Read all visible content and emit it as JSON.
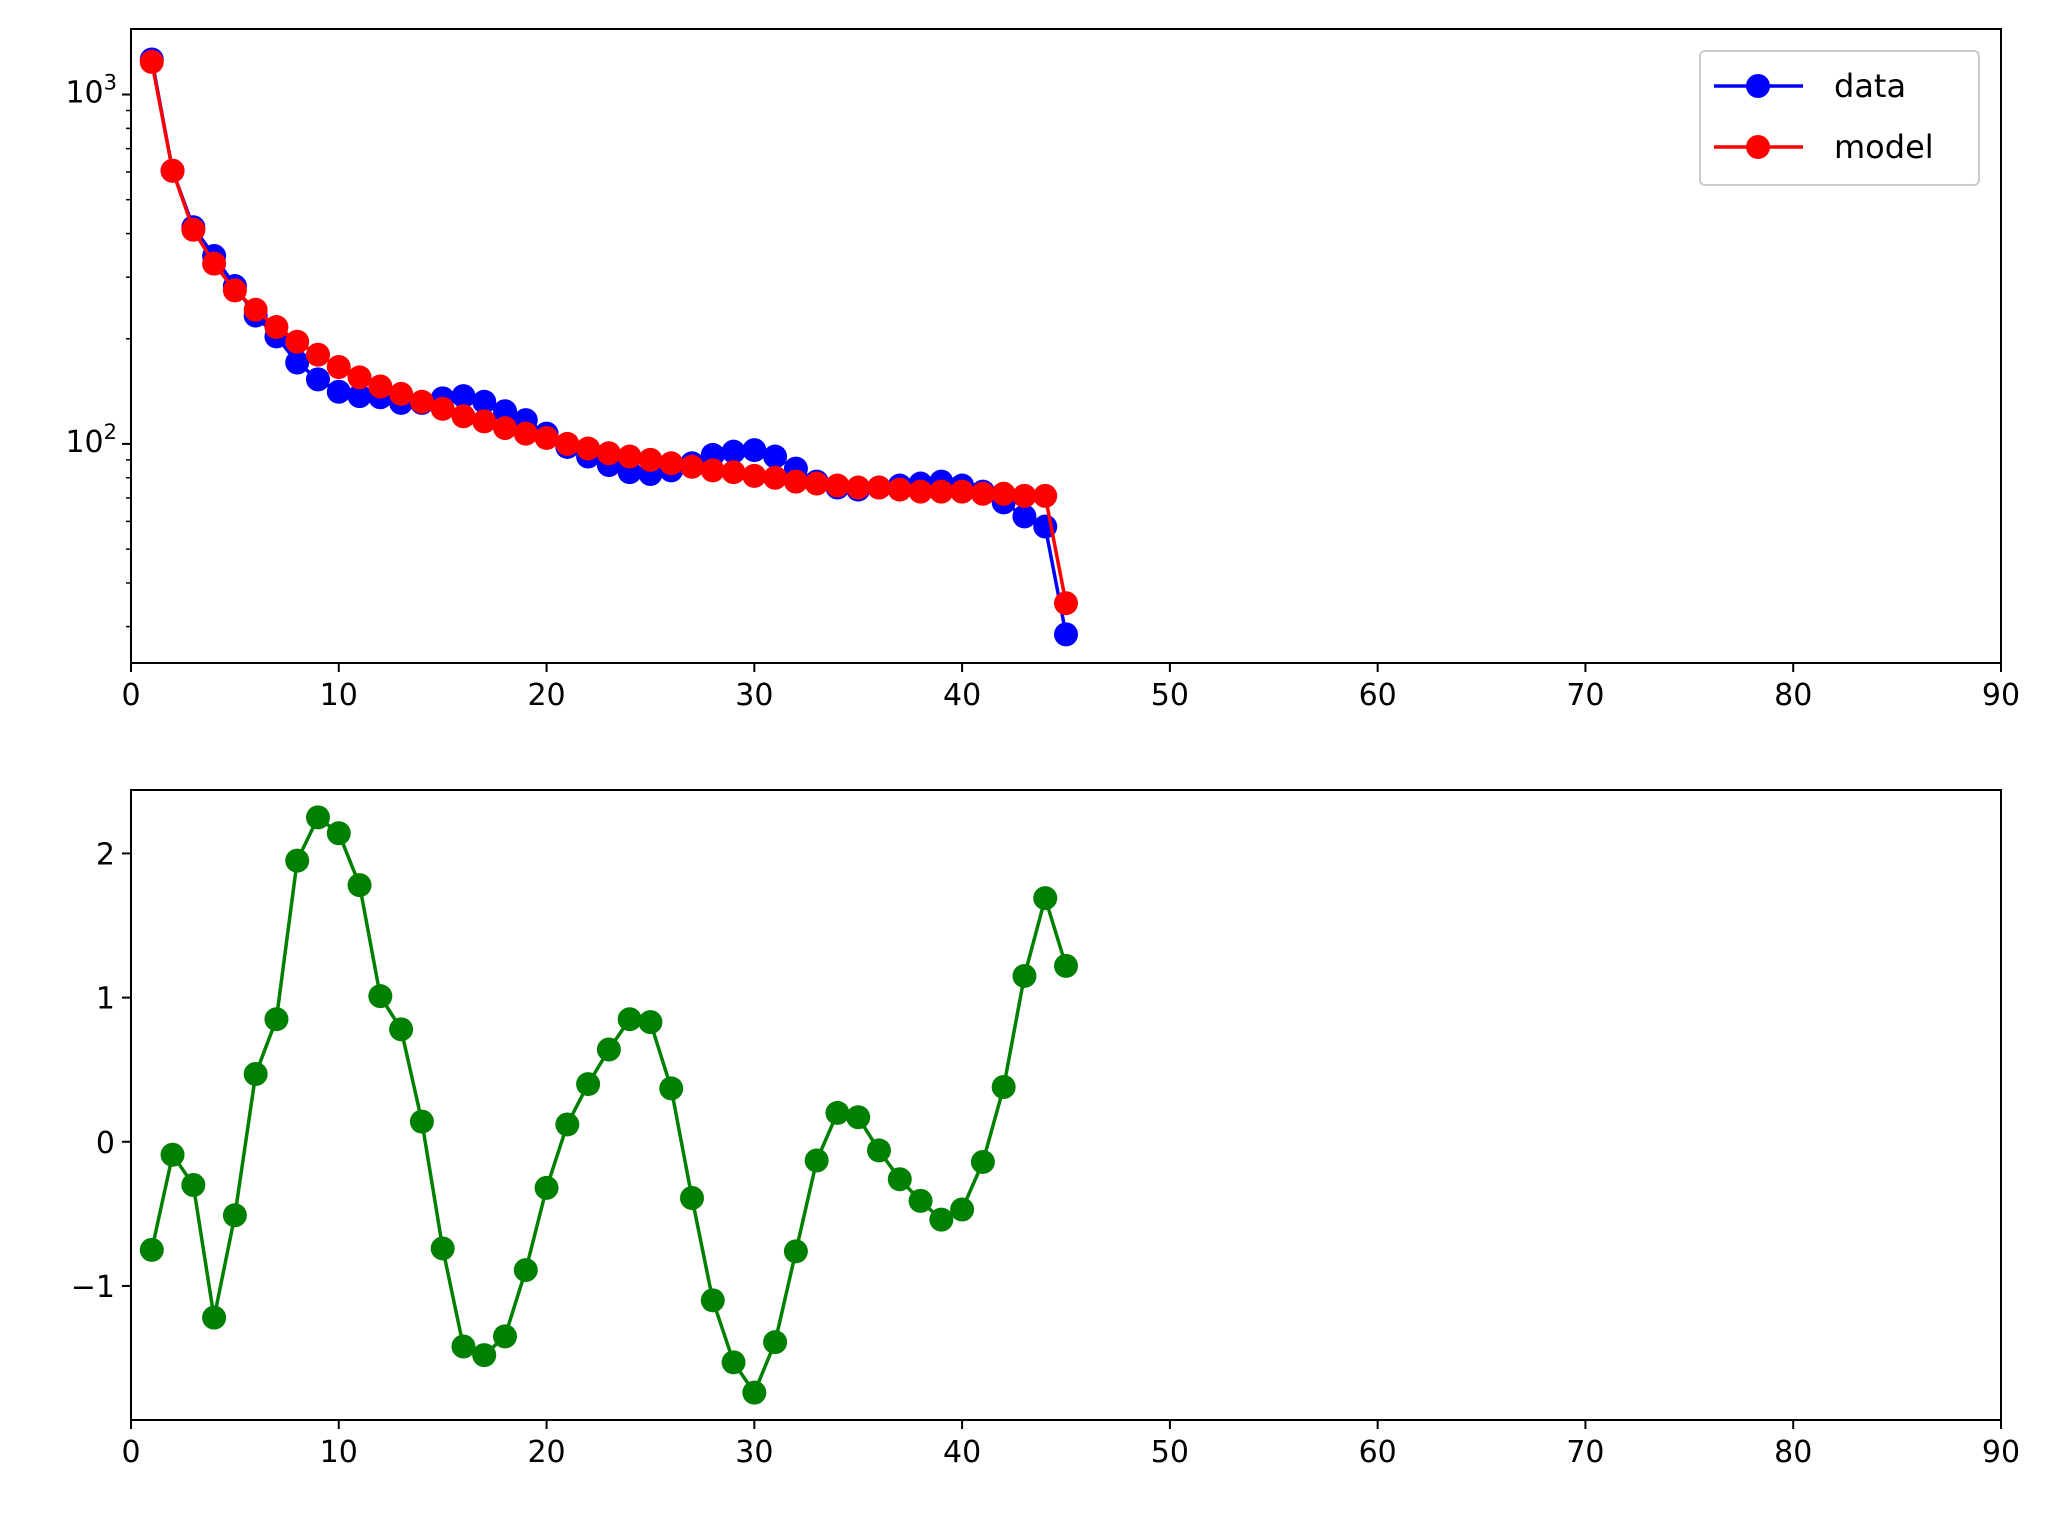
{
  "chart_data": [
    {
      "type": "line",
      "yscale": "log",
      "xlim": [
        0,
        90
      ],
      "ylim": [
        23.6,
        1540
      ],
      "x_ticks": [
        0,
        10,
        20,
        30,
        40,
        50,
        60,
        70,
        80,
        90
      ],
      "y_ticks": [
        {
          "value": 100,
          "base": "10",
          "exp": "2"
        },
        {
          "value": 1000,
          "base": "10",
          "exp": "3"
        }
      ],
      "grid": false,
      "legend": "top-right",
      "x": [
        1,
        2,
        3,
        4,
        5,
        6,
        7,
        8,
        9,
        10,
        11,
        12,
        13,
        14,
        15,
        16,
        17,
        18,
        19,
        20,
        21,
        22,
        23,
        24,
        25,
        26,
        27,
        28,
        29,
        30,
        31,
        32,
        33,
        34,
        35,
        36,
        37,
        38,
        39,
        40,
        41,
        42,
        43,
        44,
        45
      ],
      "series": [
        {
          "name": "data",
          "color": "#0000ff",
          "marker": "circle",
          "values": [
            1260,
            605,
            417,
            345,
            283,
            233,
            203,
            171,
            153,
            141,
            137,
            136,
            131,
            131,
            135,
            137,
            132,
            124,
            117,
            107,
            98,
            92,
            87,
            83,
            82,
            84,
            88,
            93,
            95,
            96,
            92,
            85,
            78,
            75,
            74,
            75,
            76,
            77,
            78,
            76,
            73,
            68,
            62,
            58,
            28.5
          ]
        },
        {
          "name": "model",
          "color": "#ff0000",
          "marker": "circle",
          "values": [
            1240,
            605,
            410,
            328,
            275,
            242,
            216,
            196,
            180,
            166,
            155,
            146,
            139,
            132,
            126,
            120,
            116,
            111,
            107,
            104,
            100,
            97,
            94,
            92,
            90,
            88,
            86,
            84,
            83,
            81,
            80,
            78,
            77,
            76,
            75,
            75,
            74,
            73,
            73,
            73,
            72,
            72,
            71,
            71,
            35
          ]
        }
      ]
    },
    {
      "type": "line",
      "xlim": [
        0,
        90
      ],
      "ylim": [
        -1.93,
        2.44
      ],
      "x_ticks": [
        0,
        10,
        20,
        30,
        40,
        50,
        60,
        70,
        80,
        90
      ],
      "y_ticks": [
        {
          "value": -1,
          "label": "−1"
        },
        {
          "value": 0,
          "label": "0"
        },
        {
          "value": 1,
          "label": "1"
        },
        {
          "value": 2,
          "label": "2"
        }
      ],
      "grid": false,
      "x": [
        1,
        2,
        3,
        4,
        5,
        6,
        7,
        8,
        9,
        10,
        11,
        12,
        13,
        14,
        15,
        16,
        17,
        18,
        19,
        20,
        21,
        22,
        23,
        24,
        25,
        26,
        27,
        28,
        29,
        30,
        31,
        32,
        33,
        34,
        35,
        36,
        37,
        38,
        39,
        40,
        41,
        42,
        43,
        44,
        45
      ],
      "series": [
        {
          "color": "#008000",
          "marker": "circle",
          "values": [
            -0.75,
            -0.09,
            -0.3,
            -1.22,
            -0.51,
            0.47,
            0.85,
            1.95,
            2.25,
            2.14,
            1.78,
            1.01,
            0.78,
            0.14,
            -0.74,
            -1.42,
            -1.48,
            -1.35,
            -0.89,
            -0.32,
            0.12,
            0.4,
            0.64,
            0.85,
            0.83,
            0.37,
            -0.39,
            -1.1,
            -1.53,
            -1.74,
            -1.39,
            -0.76,
            -0.13,
            0.2,
            0.17,
            -0.06,
            -0.26,
            -0.41,
            -0.54,
            -0.47,
            -0.14,
            0.38,
            1.15,
            1.69,
            1.22
          ]
        }
      ]
    }
  ]
}
